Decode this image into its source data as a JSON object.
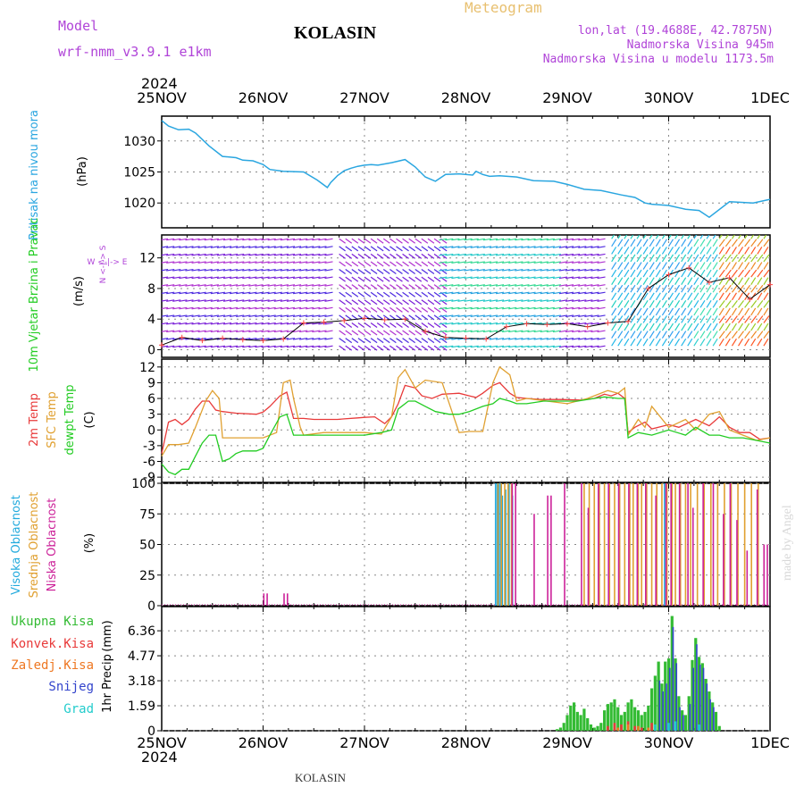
{
  "header": {
    "model_label": "Model",
    "model_name": "wrf-nmm_v3.9.1  e1km",
    "station": "KOLASIN",
    "product": "Meteogram",
    "lonlat": "lon,lat (19.4688E, 42.7875N)",
    "elevation": "Nadmorska Visina 945m",
    "model_elevation": "Nadmorska Visina u modelu 1173.5m",
    "footer_station": "KOLASIN",
    "watermark": "made by Angel",
    "year": "2024"
  },
  "time_axis": {
    "labels": [
      "25NOV",
      "26NOV",
      "27NOV",
      "28NOV",
      "29NOV",
      "30NOV",
      "1DEC"
    ],
    "start": "2024-11-25T00:00",
    "end": "2024-12-01T00:00"
  },
  "colors": {
    "pressure": "#2aa6e0",
    "temp2m": "#e83a3a",
    "sfc_temp": "#e0a030",
    "dewpoint": "#22cc22",
    "high_cloud": "#22aadd",
    "mid_cloud": "#e0a030",
    "low_cloud": "#cc2299",
    "total_precip": "#33bb33",
    "conv_precip": "#e83a3a",
    "frozen_precip": "#ee7722",
    "snow": "#3344cc",
    "hail": "#22cccc",
    "label_purple": "#b044d8",
    "label_gold": "#e8c070"
  },
  "chart_data": [
    {
      "type": "line",
      "panel": "pressure",
      "ylabel": "Pritisak na nivou mora",
      "unit": "(hPa)",
      "yticks": [
        1020,
        1025,
        1030
      ],
      "ylim": [
        1016,
        1034
      ],
      "series": [
        {
          "name": "Pritisak na nivou mora",
          "x": [
            0,
            4,
            10,
            16,
            20,
            28,
            36,
            44,
            48,
            54,
            58,
            60,
            64,
            72,
            84,
            92,
            98,
            100,
            104,
            108,
            112,
            116,
            120,
            124,
            128,
            136,
            144,
            150,
            156,
            162,
            168,
            176,
            184,
            186,
            190,
            194,
            200,
            210,
            220,
            232,
            240,
            250,
            260,
            272,
            280,
            286,
            290,
            300,
            310,
            318,
            324,
            336,
            350,
            360
          ],
          "values": [
            1033.3,
            1032.4,
            1031.8,
            1031.9,
            1031.3,
            1029.2,
            1027.5,
            1027.3,
            1026.9,
            1026.8,
            1026.4,
            1026.2,
            1025.4,
            1025.1,
            1025.0,
            1023.7,
            1022.5,
            1023.3,
            1024.4,
            1025.2,
            1025.6,
            1025.9,
            1026.1,
            1026.2,
            1026.1,
            1026.5,
            1027.0,
            1025.8,
            1024.2,
            1023.5,
            1024.6,
            1024.7,
            1024.5,
            1025.1,
            1024.6,
            1024.3,
            1024.4,
            1024.2,
            1023.6,
            1023.5,
            1023.0,
            1022.2,
            1022.0,
            1021.3,
            1020.9,
            1020.0,
            1019.8,
            1019.6,
            1019.0,
            1018.8,
            1017.7,
            1020.2,
            1020.0,
            1020.6
          ]
        }
      ]
    },
    {
      "type": "scatter",
      "panel": "wind",
      "ylabel": "10m Vjetar Brzina i Pravac",
      "unit": "(m/s)",
      "yticks": [
        0,
        4,
        8,
        12
      ],
      "ylim": [
        -1,
        15
      ],
      "compass": "W <-|-> E",
      "compass_ns": "N <-|-> S",
      "series": [
        {
          "name": "Brzina",
          "x": [
            0,
            12,
            24,
            36,
            48,
            60,
            72,
            84,
            96,
            108,
            120,
            132,
            144,
            156,
            168,
            180,
            192,
            204,
            216,
            228,
            240,
            252,
            264,
            276,
            288,
            300,
            312,
            324,
            336,
            348,
            360
          ],
          "values": [
            0.6,
            1.6,
            1.2,
            1.5,
            1.3,
            1.2,
            1.4,
            3.5,
            3.6,
            3.8,
            4.1,
            3.9,
            4.0,
            2.4,
            1.6,
            1.5,
            1.4,
            3.0,
            3.4,
            3.3,
            3.4,
            3.0,
            3.5,
            3.7,
            8.0,
            9.8,
            10.7,
            8.8,
            9.4,
            6.6,
            8.5
          ]
        }
      ]
    },
    {
      "type": "line",
      "panel": "temperature",
      "unit": "(C)",
      "yticks": [
        -9,
        -6,
        -3,
        0,
        3,
        6,
        9,
        12
      ],
      "ylim": [
        -10,
        13.5
      ],
      "series": [
        {
          "name": "2m Temp",
          "x": [
            0,
            4,
            8,
            12,
            16,
            20,
            24,
            28,
            32,
            36,
            44,
            56,
            60,
            64,
            70,
            74,
            78,
            84,
            90,
            96,
            104,
            108,
            116,
            120,
            126,
            132,
            136,
            140,
            144,
            150,
            154,
            160,
            166,
            176,
            182,
            186,
            190,
            196,
            200,
            206,
            210,
            216,
            224,
            236,
            248,
            256,
            262,
            266,
            270,
            274,
            276,
            280,
            286,
            290,
            300,
            306,
            316,
            324,
            330,
            336,
            342,
            348,
            354,
            360
          ],
          "values": [
            -4.5,
            1.5,
            2.0,
            1.0,
            2.0,
            4.0,
            5.5,
            5.5,
            3.8,
            3.5,
            3.2,
            3.0,
            3.4,
            4.5,
            6.5,
            7.2,
            2.2,
            2.2,
            2.0,
            2.0,
            2.0,
            2.1,
            2.3,
            2.4,
            2.5,
            1.2,
            2.5,
            5.0,
            8.5,
            8.0,
            6.5,
            6.0,
            6.8,
            7.0,
            6.5,
            6.2,
            7.0,
            8.5,
            9.0,
            7.0,
            6.2,
            6.0,
            5.8,
            5.8,
            5.7,
            6.0,
            6.8,
            6.5,
            7.0,
            6.0,
            -0.5,
            0.5,
            1.5,
            0.2,
            1.0,
            0.5,
            2.0,
            0.8,
            2.5,
            0.5,
            -0.5,
            -0.5,
            -1.8,
            -1.5
          ]
        },
        {
          "name": "SFC Temp",
          "x": [
            0,
            4,
            10,
            16,
            20,
            26,
            30,
            34,
            36,
            48,
            60,
            68,
            72,
            76,
            78,
            82,
            84,
            96,
            108,
            120,
            130,
            136,
            140,
            144,
            150,
            156,
            166,
            176,
            182,
            190,
            196,
            200,
            206,
            210,
            216,
            228,
            240,
            252,
            264,
            270,
            274,
            276,
            282,
            286,
            290,
            300,
            310,
            316,
            324,
            330,
            336,
            344,
            352,
            360
          ],
          "values": [
            -5.0,
            -2.8,
            -2.8,
            -2.5,
            0.5,
            5.5,
            7.5,
            6.0,
            -1.5,
            -1.5,
            -1.5,
            -0.5,
            9.0,
            9.5,
            6.0,
            0.5,
            -1.0,
            -0.5,
            -0.5,
            -0.5,
            -0.8,
            2.5,
            10.0,
            11.5,
            8.0,
            9.5,
            9.0,
            -0.5,
            -0.3,
            -0.3,
            9.0,
            12.0,
            10.5,
            5.5,
            6.0,
            5.5,
            5.0,
            6.0,
            7.5,
            7.0,
            8.0,
            -1.0,
            2.0,
            0.5,
            4.5,
            0.5,
            2.0,
            0.0,
            3.0,
            3.5,
            0.0,
            -1.0,
            -2.0,
            -1.5
          ]
        },
        {
          "name": "dewpt Temp",
          "x": [
            0,
            4,
            8,
            12,
            16,
            20,
            24,
            28,
            32,
            36,
            40,
            44,
            48,
            56,
            60,
            64,
            70,
            74,
            78,
            84,
            90,
            96,
            108,
            120,
            130,
            136,
            140,
            146,
            150,
            156,
            162,
            170,
            176,
            182,
            190,
            196,
            200,
            206,
            210,
            216,
            226,
            236,
            246,
            256,
            262,
            270,
            274,
            276,
            282,
            290,
            300,
            310,
            316,
            324,
            330,
            336,
            344,
            352,
            360
          ],
          "values": [
            -6.5,
            -8.0,
            -8.5,
            -7.5,
            -7.5,
            -5.0,
            -2.5,
            -1.0,
            -1.0,
            -6.0,
            -5.5,
            -4.5,
            -4.0,
            -4.0,
            -3.5,
            -1.0,
            2.5,
            3.0,
            -1.0,
            -1.0,
            -1.0,
            -1.0,
            -1.0,
            -1.0,
            -0.5,
            0.0,
            4.0,
            5.5,
            5.5,
            4.5,
            3.5,
            3.0,
            3.0,
            3.5,
            4.5,
            5.0,
            6.0,
            5.5,
            5.0,
            5.0,
            5.5,
            5.5,
            5.5,
            6.0,
            6.3,
            6.0,
            6.0,
            -1.5,
            -0.5,
            -1.0,
            0.0,
            -1.0,
            0.5,
            -1.0,
            -1.0,
            -1.5,
            -1.5,
            -2.0,
            -2.5
          ]
        }
      ],
      "labels": [
        "2m Temp",
        "SFC Temp",
        "dewpt Temp"
      ]
    },
    {
      "type": "bar",
      "panel": "cloud",
      "unit": "(%)",
      "yticks": [
        0,
        25,
        50,
        75,
        100
      ],
      "ylim": [
        0,
        100
      ],
      "labels": [
        "Visoka Oblacnost",
        "Srednja Oblacnost",
        "Niska Oblacnost"
      ],
      "series": [
        {
          "name": "Visoka Oblacnost",
          "x": [
            198,
            199,
            200,
            201,
            202,
            204,
            206,
            208,
            298,
            299
          ],
          "values": [
            100,
            100,
            100,
            100,
            90,
            95,
            100,
            90,
            100,
            35
          ]
        },
        {
          "name": "Srednja Oblacnost",
          "x": [
            199,
            201,
            203,
            205,
            207,
            250,
            253,
            256,
            259,
            262,
            265,
            268,
            271,
            274,
            277,
            279,
            282,
            284,
            287,
            290,
            293,
            296,
            299,
            302,
            304,
            307,
            310,
            313,
            317,
            321,
            325,
            329,
            333,
            337,
            341,
            345,
            349,
            353
          ],
          "values": [
            100,
            100,
            100,
            100,
            100,
            100,
            100,
            100,
            100,
            100,
            100,
            100,
            100,
            100,
            100,
            100,
            100,
            100,
            100,
            100,
            100,
            100,
            100,
            100,
            100,
            100,
            100,
            100,
            100,
            100,
            100,
            100,
            100,
            100,
            100,
            100,
            100,
            100
          ]
        },
        {
          "name": "Niska Oblacnost",
          "x": [
            60,
            62,
            72,
            74,
            207,
            209,
            220,
            228,
            230,
            238,
            248,
            252,
            258,
            264,
            270,
            276,
            281,
            286,
            292,
            298,
            301,
            306,
            311,
            314,
            320,
            326,
            332,
            336,
            340,
            346,
            352,
            356,
            358
          ],
          "values": [
            10,
            10,
            10,
            10,
            100,
            100,
            75,
            90,
            90,
            100,
            100,
            80,
            100,
            100,
            100,
            100,
            100,
            100,
            90,
            100,
            100,
            100,
            100,
            80,
            100,
            100,
            75,
            100,
            70,
            45,
            95,
            50,
            50
          ]
        }
      ]
    },
    {
      "type": "bar",
      "panel": "precip",
      "ylabel": "1hr Precip",
      "unit": "(mm)",
      "yticks": [
        0,
        1.59,
        3.18,
        4.77,
        6.36
      ],
      "ylim": [
        0,
        7.9
      ],
      "labels": [
        "Ukupna Kisa",
        "Konvek.Kisa",
        "Zaledj.Kisa",
        "Snijeg",
        "Grad"
      ],
      "series": [
        {
          "name": "Ukupna Kisa",
          "x": [
            234,
            236,
            238,
            240,
            242,
            244,
            246,
            248,
            250,
            252,
            254,
            256,
            258,
            260,
            262,
            264,
            266,
            268,
            270,
            272,
            274,
            276,
            278,
            280,
            282,
            284,
            286,
            288,
            290,
            292,
            294,
            296,
            298,
            300,
            302,
            304,
            306,
            308,
            310,
            312,
            314,
            316,
            318,
            320,
            322,
            324,
            326,
            328,
            330
          ],
          "values": [
            0.1,
            0.2,
            0.5,
            1.0,
            1.6,
            1.8,
            1.2,
            1.0,
            1.4,
            0.8,
            0.4,
            0.2,
            0.3,
            0.5,
            1.3,
            1.7,
            1.8,
            2.0,
            1.5,
            1.0,
            1.2,
            1.8,
            2.0,
            1.5,
            1.3,
            1.0,
            1.2,
            1.6,
            2.7,
            3.5,
            4.4,
            3.0,
            4.4,
            4.6,
            7.3,
            4.6,
            2.2,
            1.3,
            1.0,
            2.2,
            4.5,
            5.9,
            4.7,
            4.3,
            3.3,
            2.5,
            1.8,
            1.2,
            0.3
          ]
        },
        {
          "name": "Konvek.Kisa",
          "x": [
            264,
            268,
            272,
            276,
            280,
            284,
            290
          ],
          "values": [
            0.3,
            0.5,
            0.4,
            0.6,
            0.3,
            0.2,
            0.5
          ]
        },
        {
          "name": "Zaledj.Kisa",
          "x": [
            270,
            276,
            282,
            288
          ],
          "values": [
            0.2,
            0.4,
            0.3,
            0.2
          ]
        },
        {
          "name": "Snijeg",
          "x": [
            294,
            296,
            298,
            300,
            302,
            304,
            306,
            308,
            312,
            314,
            316,
            318,
            320,
            322,
            324,
            326
          ],
          "values": [
            3.2,
            2.5,
            3.0,
            4.0,
            6.6,
            4.3,
            1.5,
            1.0,
            1.7,
            4.0,
            5.5,
            4.2,
            4.0,
            3.0,
            2.0,
            1.5
          ]
        },
        {
          "name": "Grad",
          "x": [
            292,
            300,
            304,
            318
          ],
          "values": [
            0.4,
            0.5,
            0.6,
            0.4
          ]
        }
      ]
    }
  ]
}
